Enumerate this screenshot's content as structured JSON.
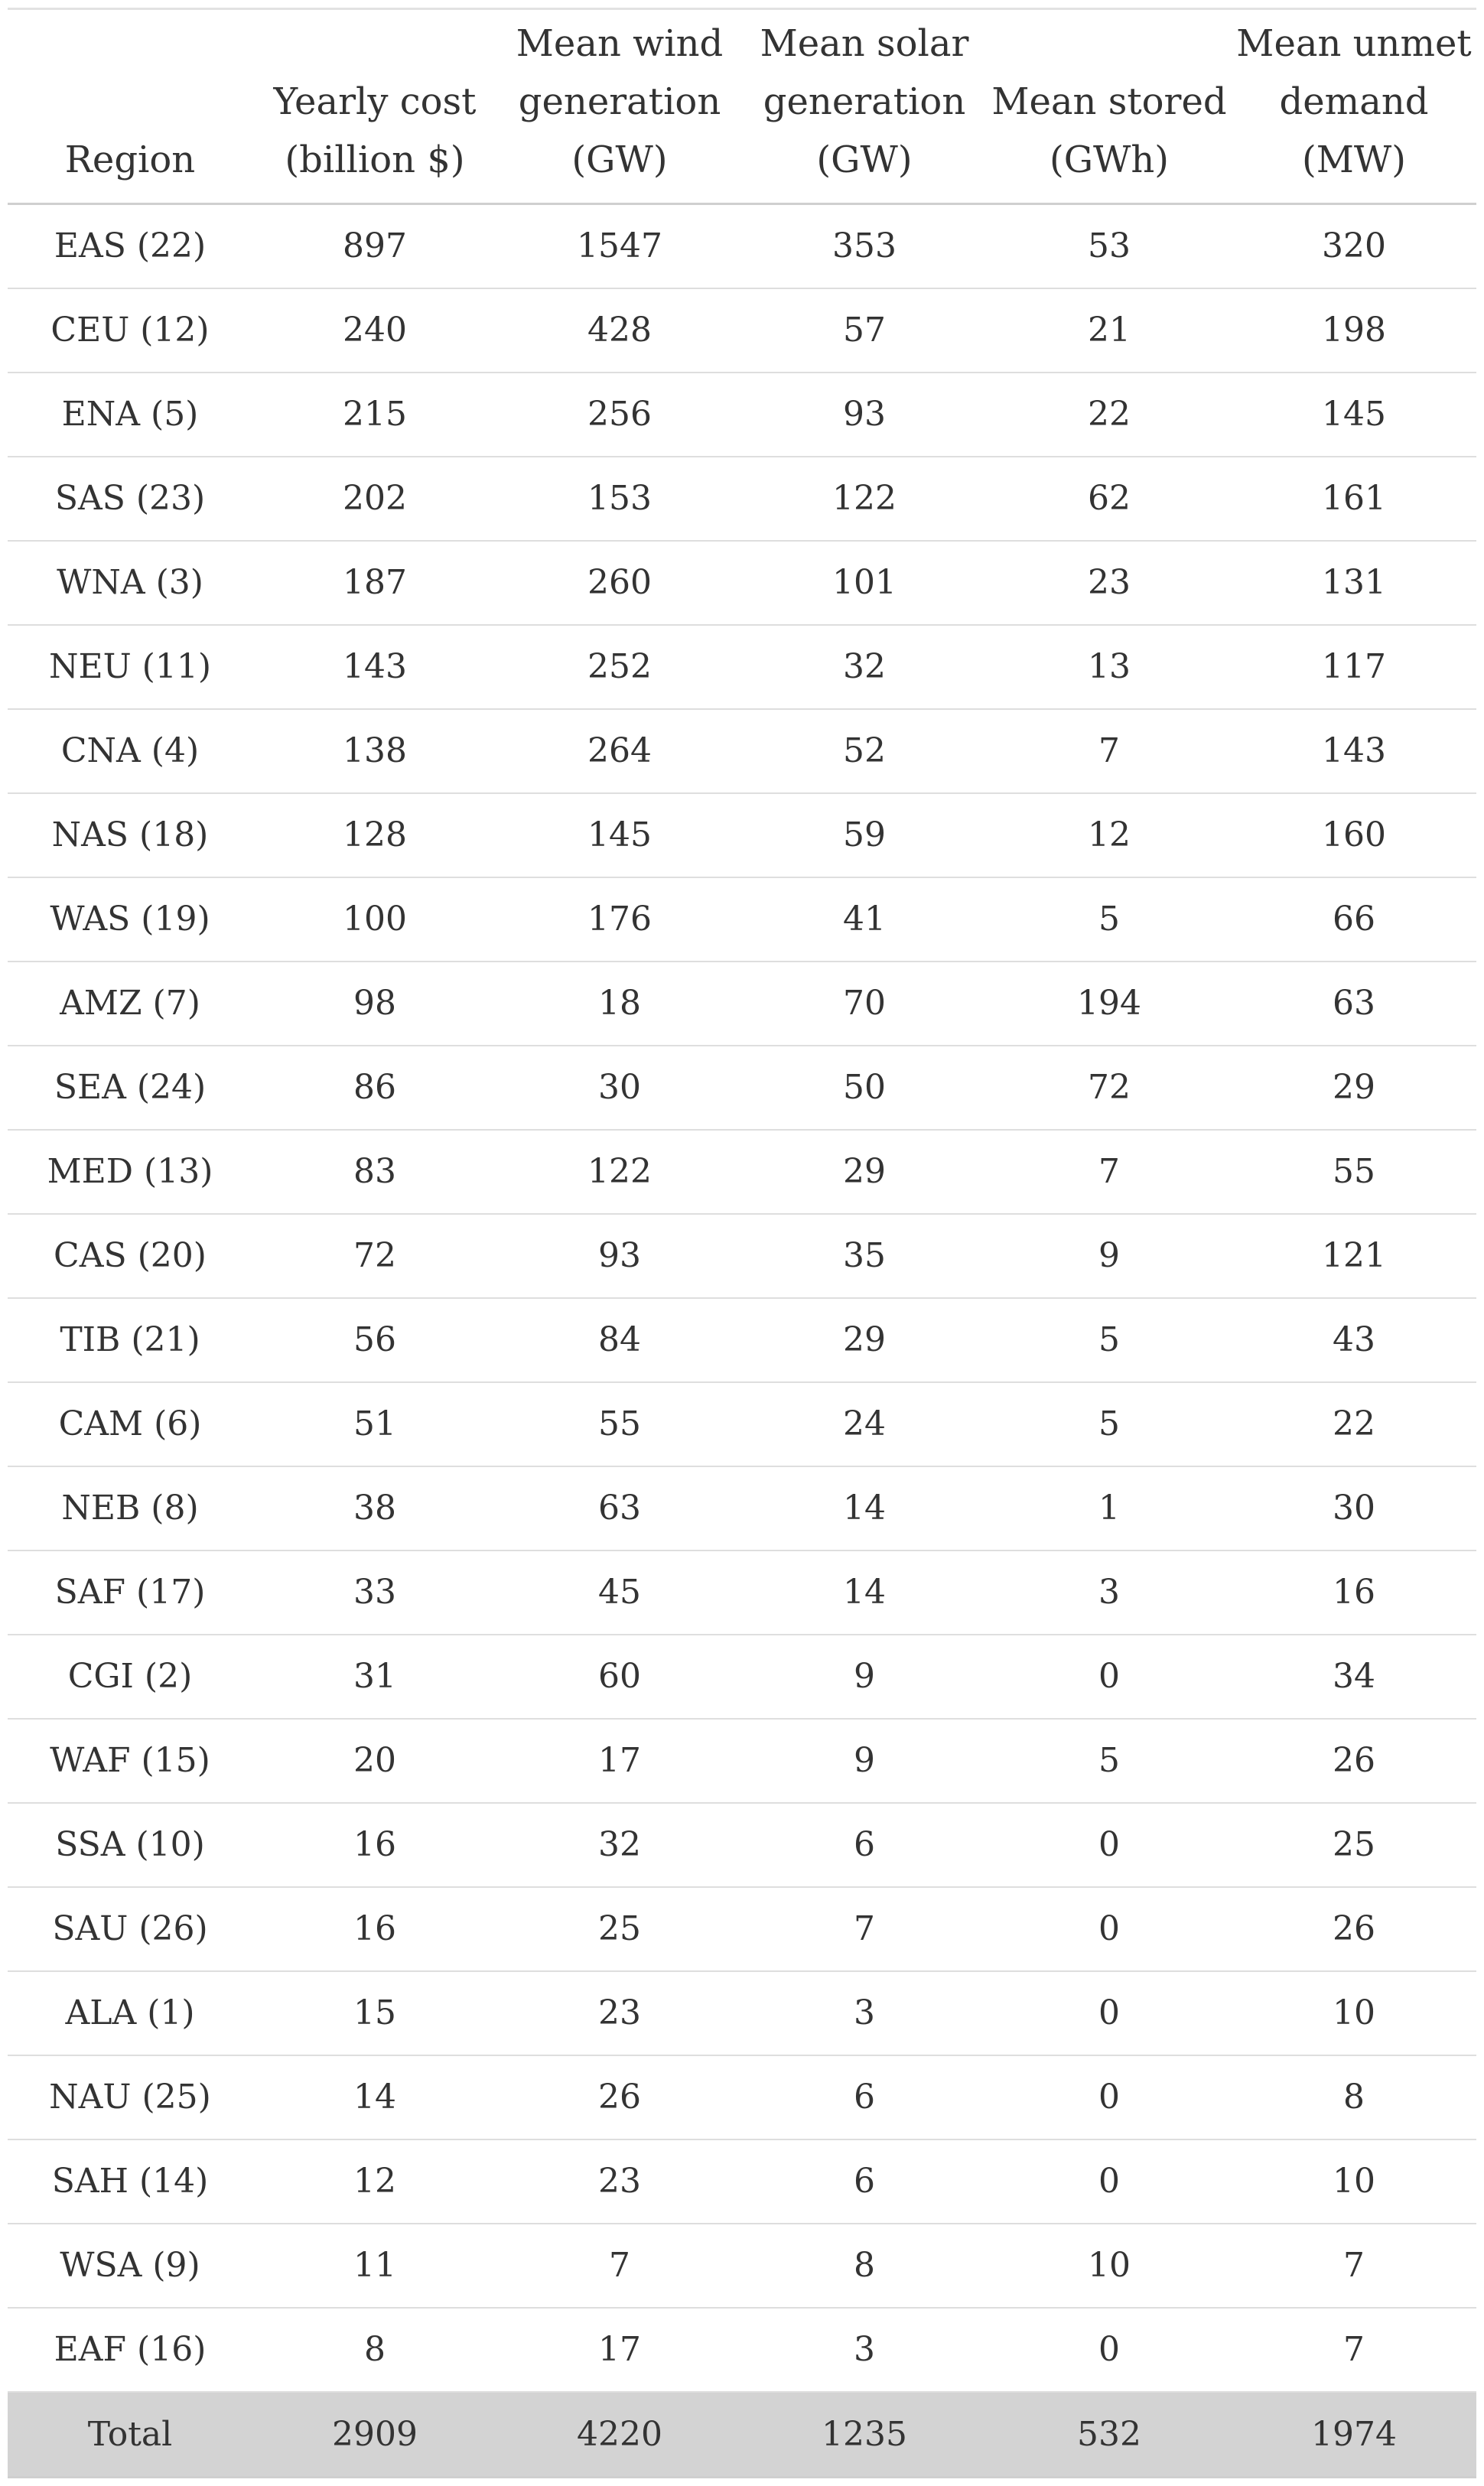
{
  "table": {
    "columns": [
      "Region",
      "Yearly cost\n(billion $)",
      "Mean wind\ngeneration\n(GW)",
      "Mean solar\ngeneration\n(GW)",
      "Mean stored\n(GWh)",
      "Mean unmet\ndemand\n(MW)"
    ],
    "rows": [
      [
        "EAS (22)",
        "897",
        "1547",
        "353",
        "53",
        "320"
      ],
      [
        "CEU (12)",
        "240",
        "428",
        "57",
        "21",
        "198"
      ],
      [
        "ENA (5)",
        "215",
        "256",
        "93",
        "22",
        "145"
      ],
      [
        "SAS (23)",
        "202",
        "153",
        "122",
        "62",
        "161"
      ],
      [
        "WNA (3)",
        "187",
        "260",
        "101",
        "23",
        "131"
      ],
      [
        "NEU (11)",
        "143",
        "252",
        "32",
        "13",
        "117"
      ],
      [
        "CNA (4)",
        "138",
        "264",
        "52",
        "7",
        "143"
      ],
      [
        "NAS (18)",
        "128",
        "145",
        "59",
        "12",
        "160"
      ],
      [
        "WAS (19)",
        "100",
        "176",
        "41",
        "5",
        "66"
      ],
      [
        "AMZ (7)",
        "98",
        "18",
        "70",
        "194",
        "63"
      ],
      [
        "SEA (24)",
        "86",
        "30",
        "50",
        "72",
        "29"
      ],
      [
        "MED (13)",
        "83",
        "122",
        "29",
        "7",
        "55"
      ],
      [
        "CAS (20)",
        "72",
        "93",
        "35",
        "9",
        "121"
      ],
      [
        "TIB (21)",
        "56",
        "84",
        "29",
        "5",
        "43"
      ],
      [
        "CAM (6)",
        "51",
        "55",
        "24",
        "5",
        "22"
      ],
      [
        "NEB (8)",
        "38",
        "63",
        "14",
        "1",
        "30"
      ],
      [
        "SAF (17)",
        "33",
        "45",
        "14",
        "3",
        "16"
      ],
      [
        "CGI (2)",
        "31",
        "60",
        "9",
        "0",
        "34"
      ],
      [
        "WAF (15)",
        "20",
        "17",
        "9",
        "5",
        "26"
      ],
      [
        "SSA (10)",
        "16",
        "32",
        "6",
        "0",
        "25"
      ],
      [
        "SAU (26)",
        "16",
        "25",
        "7",
        "0",
        "26"
      ],
      [
        "ALA (1)",
        "15",
        "23",
        "3",
        "0",
        "10"
      ],
      [
        "NAU (25)",
        "14",
        "26",
        "6",
        "0",
        "8"
      ],
      [
        "SAH (14)",
        "12",
        "23",
        "6",
        "0",
        "10"
      ],
      [
        "WSA (9)",
        "11",
        "7",
        "8",
        "10",
        "7"
      ],
      [
        "EAF (16)",
        "8",
        "17",
        "3",
        "0",
        "7"
      ]
    ],
    "total": [
      "Total",
      "2909",
      "4220",
      "1235",
      "532",
      "1974"
    ],
    "colors": {
      "header_rule": "#cfcfcf",
      "row_rule": "#dedede",
      "total_background": "#d3d3d3",
      "text": "#333333"
    }
  }
}
